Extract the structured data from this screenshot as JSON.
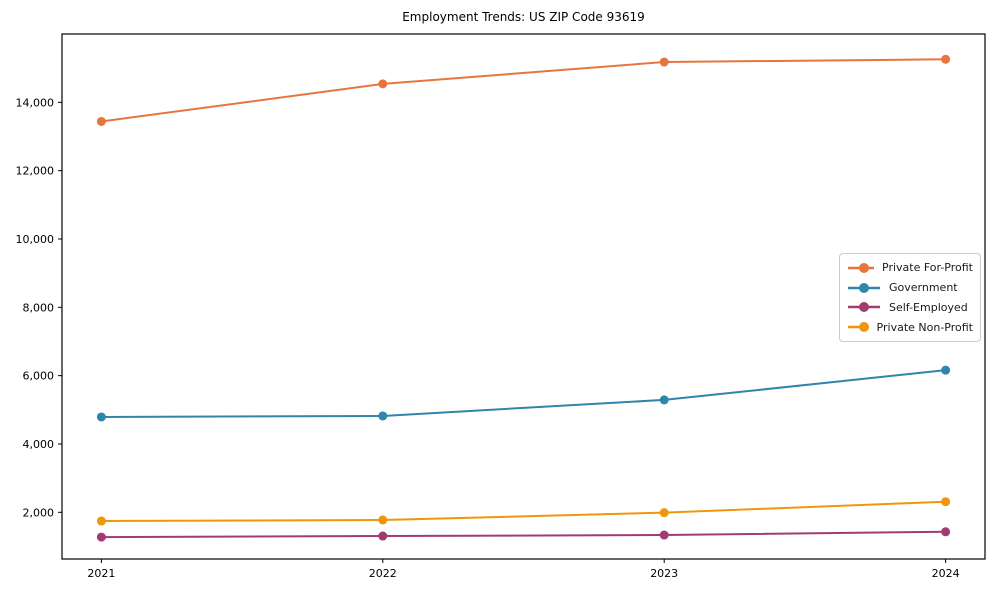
{
  "chart_data": {
    "type": "line",
    "title": "Employment Trends: US ZIP Code 93619",
    "x": [
      2021,
      2022,
      2023,
      2024
    ],
    "xtick_labels": [
      "2021",
      "2022",
      "2023",
      "2024"
    ],
    "series": [
      {
        "name": "Private For-Profit",
        "color": "#E8763C",
        "values": [
          13440,
          14540,
          15180,
          15260
        ]
      },
      {
        "name": "Government",
        "color": "#2E86AB",
        "values": [
          4790,
          4820,
          5290,
          6160
        ]
      },
      {
        "name": "Self-Employed",
        "color": "#A23B72",
        "values": [
          1275,
          1305,
          1335,
          1430
        ]
      },
      {
        "name": "Private Non-Profit",
        "color": "#F0960B",
        "values": [
          1745,
          1775,
          1990,
          2310
        ]
      }
    ],
    "yticks": [
      2000,
      4000,
      6000,
      8000,
      10000,
      12000,
      14000
    ],
    "ytick_labels": [
      "2,000",
      "4,000",
      "6,000",
      "8,000",
      "10,000",
      "12,000",
      "14,000"
    ],
    "xlim": [
      2020.86,
      2024.14
    ],
    "ylim": [
      633,
      16000
    ],
    "grid": false,
    "legend_position": "center right",
    "marker": "circle",
    "marker_radius": 4.5,
    "line_width": 2,
    "frame_color": "#000000",
    "tick_label_color": "#000000",
    "background_color": "#ffffff"
  }
}
